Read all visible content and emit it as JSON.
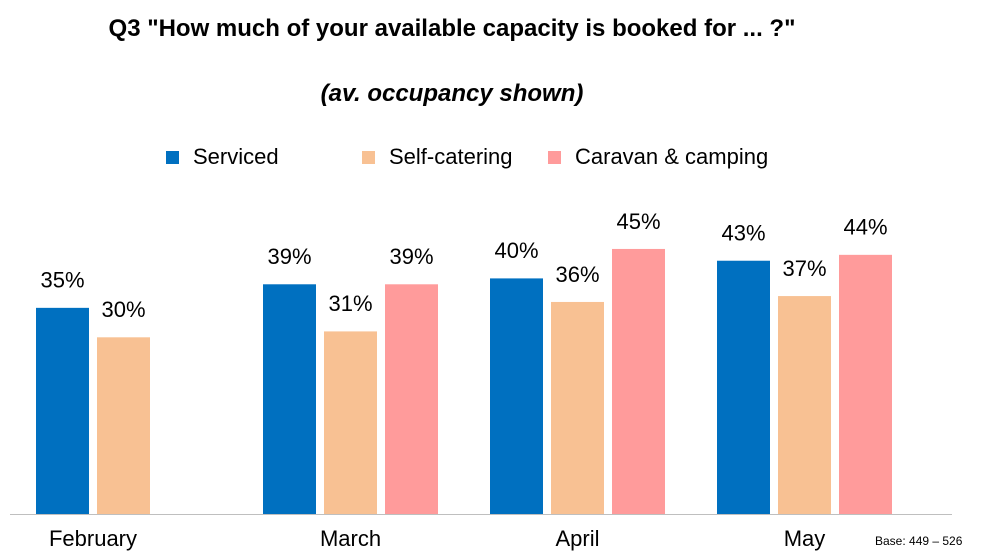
{
  "chart_data": {
    "type": "bar",
    "title": "Q3 \"How much of your available capacity is booked for ... ?\"",
    "subtitle": "(av. occupancy shown)",
    "categories": [
      "February",
      "March",
      "April",
      "May"
    ],
    "series": [
      {
        "name": "Serviced",
        "color": "#0070c0",
        "values": [
          35,
          39,
          40,
          43
        ],
        "value_labels": [
          "35%",
          "39%",
          "40%",
          "43%"
        ]
      },
      {
        "name": "Self-catering",
        "color": "#f8c193",
        "values": [
          30,
          31,
          36,
          37
        ],
        "value_labels": [
          "30%",
          "31%",
          "36%",
          "37%"
        ]
      },
      {
        "name": "Caravan & camping",
        "color": "#ff9b9b",
        "values": [
          null,
          39,
          45,
          44
        ],
        "value_labels": [
          null,
          "39%",
          "45%",
          "44%"
        ]
      }
    ],
    "legend": "top",
    "annotation": "Base: 449 – 526"
  }
}
